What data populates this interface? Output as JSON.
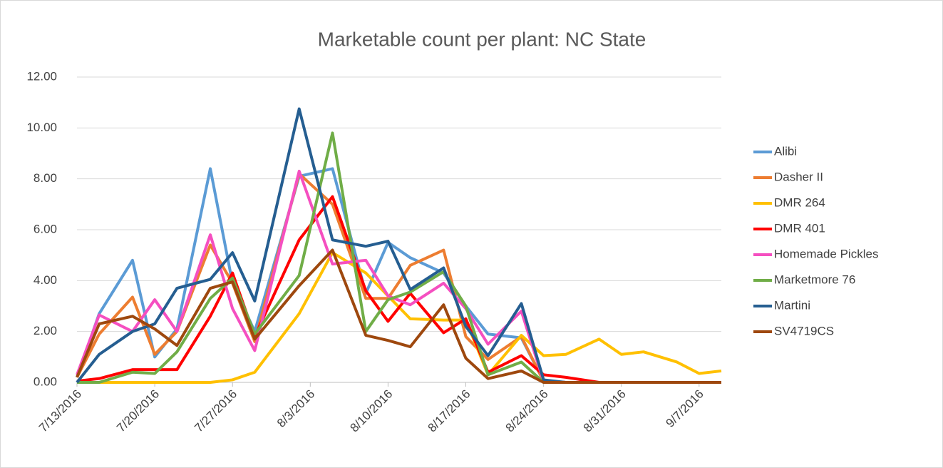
{
  "chart_data": {
    "type": "line",
    "title": "Marketable count per plant: NC State",
    "x": [
      "7/13/2016",
      "7/15/2016",
      "7/18/2016",
      "7/20/2016",
      "7/22/2016",
      "7/25/2016",
      "7/27/2016",
      "7/29/2016",
      "8/2/2016",
      "8/5/2016",
      "8/8/2016",
      "8/10/2016",
      "8/12/2016",
      "8/15/2016",
      "8/17/2016",
      "8/19/2016",
      "8/22/2016",
      "8/24/2016",
      "8/26/2016",
      "8/29/2016",
      "8/31/2016",
      "9/2/2016",
      "9/5/2016",
      "9/7/2016",
      "9/9/2016"
    ],
    "xlim": [
      "7/13/2016",
      "9/9/2016"
    ],
    "xticks": [
      "7/13/2016",
      "7/20/2016",
      "7/27/2016",
      "8/3/2016",
      "8/10/2016",
      "8/17/2016",
      "8/24/2016",
      "8/31/2016",
      "9/7/2016"
    ],
    "ylim": [
      0,
      12
    ],
    "yticks": [
      {
        "value": 0,
        "label": "0.00"
      },
      {
        "value": 2,
        "label": "2.00"
      },
      {
        "value": 4,
        "label": "4.00"
      },
      {
        "value": 6,
        "label": "6.00"
      },
      {
        "value": 8,
        "label": "8.00"
      },
      {
        "value": 10,
        "label": "10.00"
      },
      {
        "value": 12,
        "label": "12.00"
      }
    ],
    "grid": true,
    "legend": "right",
    "series": [
      {
        "name": "Alibi",
        "color": "#5b9bd5",
        "values": [
          0.2,
          2.7,
          4.8,
          1.0,
          2.1,
          8.4,
          3.9,
          2.0,
          8.1,
          8.4,
          3.5,
          5.5,
          4.9,
          4.3,
          3.0,
          1.9,
          1.75,
          0.05,
          0,
          0,
          0,
          0,
          0,
          0,
          0
        ]
      },
      {
        "name": "Dasher II",
        "color": "#ed7d31",
        "values": [
          0.2,
          1.9,
          3.35,
          1.1,
          2.0,
          5.4,
          3.9,
          1.6,
          8.2,
          7.0,
          3.3,
          3.3,
          4.6,
          5.2,
          1.8,
          0.9,
          1.8,
          0.05,
          0,
          0,
          0,
          0,
          0,
          0,
          0
        ]
      },
      {
        "name": "DMR 264",
        "color": "#ffc000",
        "values": [
          0,
          0,
          0,
          0,
          0,
          0,
          0.1,
          0.4,
          2.7,
          5.1,
          4.3,
          3.4,
          2.5,
          2.45,
          2.45,
          0.3,
          1.85,
          1.05,
          1.1,
          1.7,
          1.1,
          1.2,
          0.8,
          0.35,
          0.45
        ]
      },
      {
        "name": "DMR 401",
        "color": "#ff0000",
        "values": [
          0.05,
          0.15,
          0.5,
          0.5,
          0.5,
          2.6,
          4.3,
          1.8,
          5.6,
          7.3,
          3.6,
          2.4,
          3.5,
          1.95,
          2.5,
          0.4,
          1.05,
          0.3,
          0.2,
          0,
          0,
          0,
          0,
          0,
          0
        ]
      },
      {
        "name": "Homemade Pickles",
        "color": "#f54fc0",
        "values": [
          0.3,
          2.65,
          2.0,
          3.25,
          2.0,
          5.8,
          2.9,
          1.25,
          8.3,
          4.65,
          4.8,
          3.4,
          3.05,
          3.9,
          2.9,
          1.5,
          2.8,
          0.05,
          0,
          0,
          0,
          0,
          0,
          0,
          0
        ]
      },
      {
        "name": "Marketmore 76",
        "color": "#70ad47",
        "values": [
          0,
          0,
          0.4,
          0.35,
          1.2,
          3.3,
          4.1,
          1.9,
          4.2,
          9.8,
          2.0,
          3.25,
          3.55,
          4.35,
          3.0,
          0.3,
          0.8,
          0,
          0,
          0,
          0,
          0,
          0,
          0,
          0
        ]
      },
      {
        "name": "Martini",
        "color": "#255e91",
        "values": [
          0,
          1.1,
          2.0,
          2.3,
          3.7,
          4.05,
          5.1,
          3.2,
          10.75,
          5.6,
          5.35,
          5.55,
          3.65,
          4.5,
          2.2,
          1.05,
          3.1,
          0.1,
          0,
          0,
          0,
          0,
          0,
          0,
          0
        ]
      },
      {
        "name": "SV4719CS",
        "color": "#9e480e",
        "values": [
          0.2,
          2.3,
          2.6,
          2.1,
          1.45,
          3.7,
          3.95,
          1.7,
          3.8,
          5.2,
          1.85,
          1.65,
          1.4,
          3.05,
          0.95,
          0.15,
          0.45,
          0,
          0,
          0,
          0,
          0,
          0,
          0,
          0
        ]
      }
    ]
  }
}
